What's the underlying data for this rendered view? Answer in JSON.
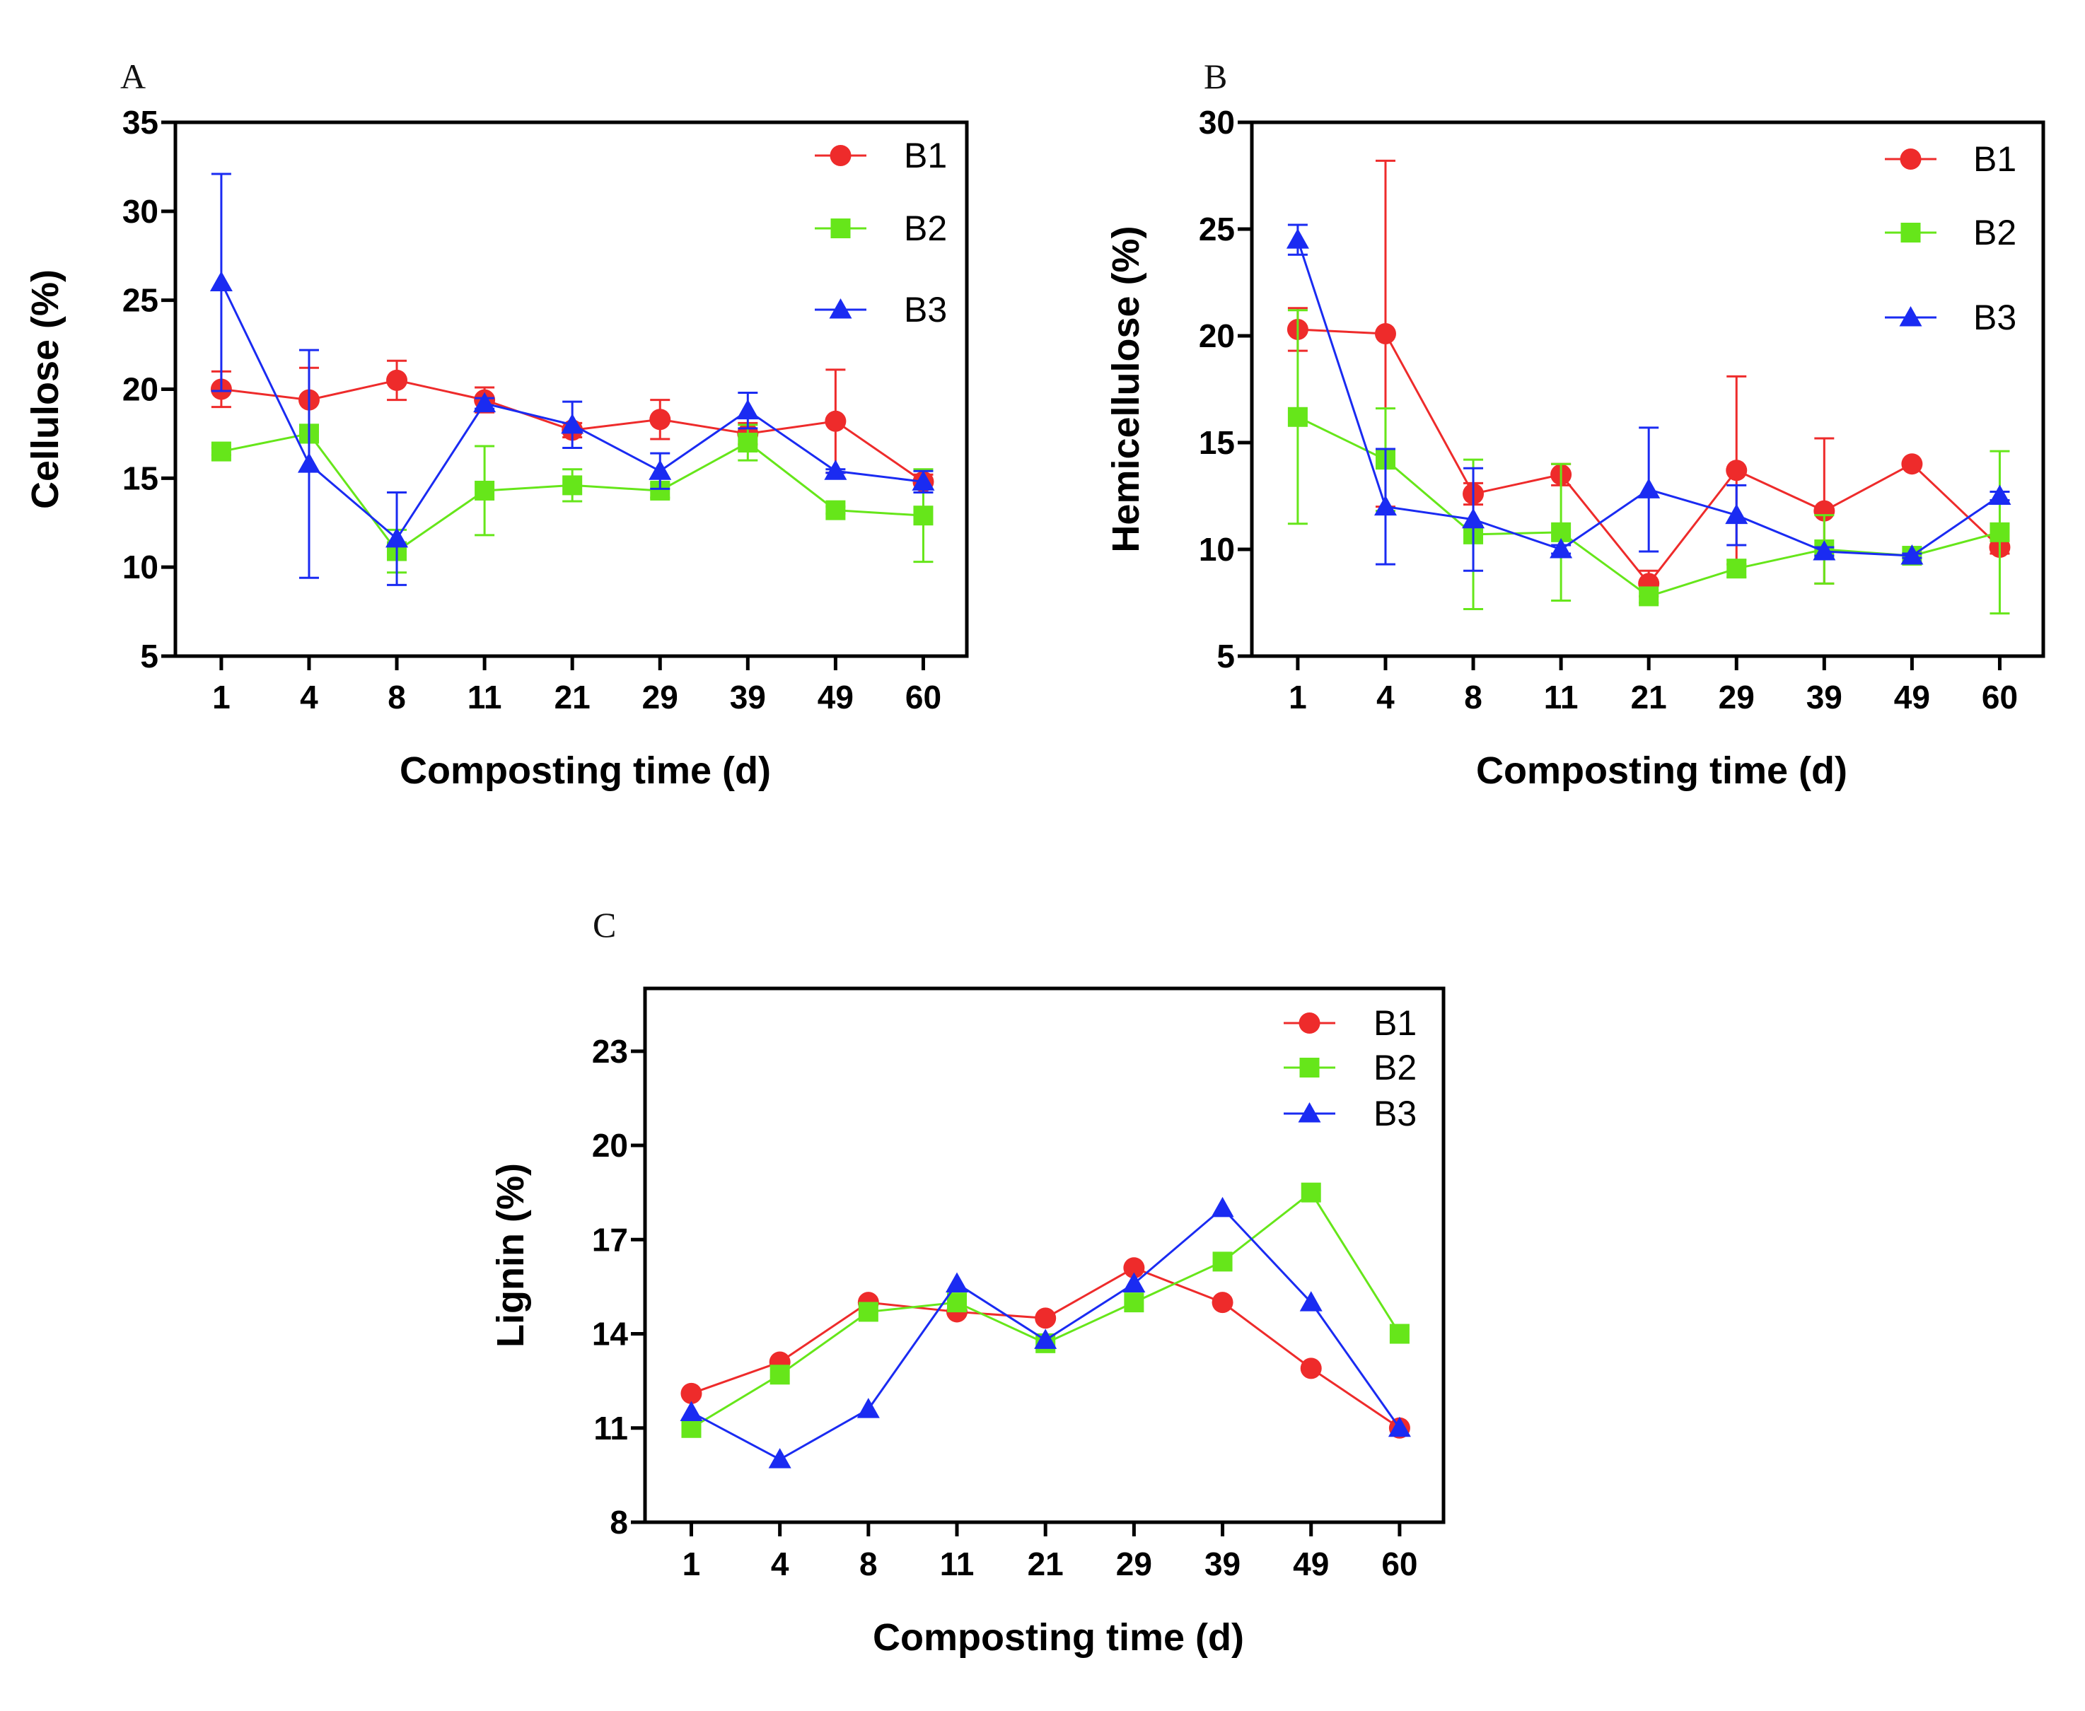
{
  "colors": {
    "B1": "#ee2b2b",
    "B2": "#66e61a",
    "B3": "#1a2bf2",
    "axis": "#000000"
  },
  "chart_data": [
    {
      "panel": "A",
      "type": "line",
      "categories": [
        "1",
        "4",
        "8",
        "11",
        "21",
        "29",
        "39",
        "49",
        "60"
      ],
      "xlabel": "Composting time (d)",
      "ylabel": "Cellulose (%)",
      "ylim": [
        5,
        35
      ],
      "yticks": [
        "5",
        "10",
        "15",
        "20",
        "25",
        "30",
        "35"
      ],
      "legend_position": "top-right",
      "error_bars": true,
      "series": [
        {
          "name": "B1",
          "marker": "circle",
          "values": [
            20.0,
            19.4,
            20.5,
            19.4,
            17.7,
            18.3,
            17.5,
            18.2,
            14.8
          ],
          "errors": [
            1.0,
            1.8,
            1.1,
            0.7,
            0.4,
            1.1,
            0.6,
            2.9,
            0.4
          ]
        },
        {
          "name": "B2",
          "marker": "square",
          "values": [
            16.5,
            17.5,
            10.9,
            14.3,
            14.6,
            14.3,
            17.0,
            13.2,
            12.9
          ],
          "errors": [
            0.2,
            0.5,
            1.2,
            2.5,
            0.9,
            0.4,
            1.0,
            0.2,
            2.6
          ]
        },
        {
          "name": "B3",
          "marker": "triangle",
          "values": [
            26.0,
            15.8,
            11.6,
            19.2,
            18.0,
            15.4,
            18.8,
            15.4,
            14.8
          ],
          "errors": [
            6.1,
            6.4,
            2.6,
            0.3,
            1.3,
            1.0,
            1.0,
            0.1,
            0.6
          ]
        }
      ]
    },
    {
      "panel": "B",
      "type": "line",
      "categories": [
        "1",
        "4",
        "8",
        "11",
        "21",
        "29",
        "39",
        "49",
        "60"
      ],
      "xlabel": "Composting time (d)",
      "ylabel": "Hemicellulose (%)",
      "ylim": [
        5,
        30
      ],
      "yticks": [
        "5",
        "10",
        "15",
        "20",
        "25",
        "30"
      ],
      "legend_position": "top-right",
      "error_bars": true,
      "series": [
        {
          "name": "B1",
          "marker": "circle",
          "values": [
            20.3,
            20.1,
            12.6,
            13.5,
            8.4,
            13.7,
            11.8,
            14.0,
            10.1
          ],
          "errors": [
            1.0,
            8.1,
            0.5,
            0.5,
            0.6,
            4.4,
            3.4,
            0.1,
            0.3
          ]
        },
        {
          "name": "B2",
          "marker": "square",
          "values": [
            16.2,
            14.2,
            10.7,
            10.8,
            7.8,
            9.1,
            10.0,
            9.7,
            10.8
          ],
          "errors": [
            5.0,
            2.4,
            3.5,
            3.2,
            0.3,
            0.4,
            1.6,
            0.1,
            3.8
          ]
        },
        {
          "name": "B3",
          "marker": "triangle",
          "values": [
            24.5,
            12.0,
            11.4,
            10.0,
            12.8,
            11.6,
            9.9,
            9.7,
            12.5
          ],
          "errors": [
            0.7,
            2.7,
            2.4,
            0.2,
            2.9,
            1.4,
            0.2,
            0.1,
            0.2
          ]
        }
      ]
    },
    {
      "panel": "C",
      "type": "line",
      "categories": [
        "1",
        "4",
        "8",
        "11",
        "21",
        "29",
        "39",
        "49",
        "60"
      ],
      "xlabel": "Composting time (d)",
      "ylabel": "Lignin (%)",
      "ylim": [
        8,
        25
      ],
      "yticks": [
        "8",
        "11",
        "14",
        "17",
        "20",
        "23"
      ],
      "legend_position": "top-right",
      "error_bars": false,
      "series": [
        {
          "name": "B1",
          "marker": "circle",
          "values": [
            12.1,
            13.1,
            15.0,
            14.7,
            14.5,
            16.1,
            15.0,
            12.9,
            11.0
          ]
        },
        {
          "name": "B2",
          "marker": "square",
          "values": [
            11.0,
            12.7,
            14.7,
            15.0,
            13.7,
            15.0,
            16.3,
            18.5,
            14.0
          ]
        },
        {
          "name": "B3",
          "marker": "triangle",
          "values": [
            11.5,
            10.0,
            11.6,
            15.6,
            13.8,
            15.6,
            18.0,
            15.0,
            11.0
          ]
        }
      ]
    }
  ]
}
